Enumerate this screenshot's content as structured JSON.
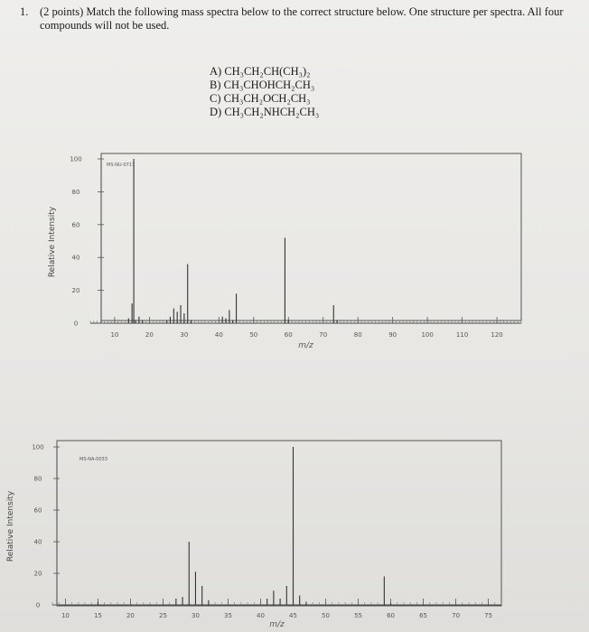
{
  "question": {
    "number": "1.",
    "text": "(2 points) Match the following mass spectra below to the correct structure below. One structure per spectra. All four compounds will not be used."
  },
  "choices": [
    "A) CH₃CH₂CH(CH₃)₂",
    "B) CH₃CHOHCH₂CH₃",
    "C) CH₃CH₂OCH₂CH₃",
    "D) CH₃CH₂NHCH₂CH₃"
  ],
  "chart_data": [
    {
      "type": "bar",
      "title": "",
      "stamp": "MS-NU-0717",
      "xlabel": "m/z",
      "ylabel": "Relative Intensity",
      "xlim": [
        3,
        127
      ],
      "ylim": [
        0,
        100
      ],
      "xticks": [
        10,
        20,
        30,
        40,
        50,
        60,
        70,
        80,
        90,
        100,
        110,
        120
      ],
      "xtick_labels": [
        "10",
        "20",
        "30",
        "40",
        "50",
        "60",
        "70",
        "80",
        "90",
        "100",
        "110",
        "120"
      ],
      "yticks": [
        0,
        20,
        40,
        60,
        80,
        100
      ],
      "ytick_labels": [
        "0",
        "20",
        "40",
        "60",
        "80",
        "100"
      ],
      "grid": false,
      "peaks": [
        {
          "mz": 14,
          "intensity": 3
        },
        {
          "mz": 15,
          "intensity": 12
        },
        {
          "mz": 16,
          "intensity": 2
        },
        {
          "mz": 17,
          "intensity": 4
        },
        {
          "mz": 18,
          "intensity": 2
        },
        {
          "mz": 25,
          "intensity": 2
        },
        {
          "mz": 26,
          "intensity": 4
        },
        {
          "mz": 27,
          "intensity": 9
        },
        {
          "mz": 28,
          "intensity": 7
        },
        {
          "mz": 29,
          "intensity": 11
        },
        {
          "mz": 30,
          "intensity": 6
        },
        {
          "mz": 31,
          "intensity": 36
        },
        {
          "mz": 32,
          "intensity": 2
        },
        {
          "mz": 41,
          "intensity": 4
        },
        {
          "mz": 42,
          "intensity": 3
        },
        {
          "mz": 43,
          "intensity": 8
        },
        {
          "mz": 44,
          "intensity": 2
        },
        {
          "mz": 45,
          "intensity": 18
        },
        {
          "mz": 59,
          "intensity": 52
        },
        {
          "mz": 60,
          "intensity": 2
        },
        {
          "mz": 73,
          "intensity": 11
        },
        {
          "mz": 74,
          "intensity": 2
        }
      ],
      "tall_peak": {
        "mz": 15.5,
        "intensity": 100
      }
    },
    {
      "type": "bar",
      "title": "",
      "stamp": "MS-NA-0033",
      "xlabel": "m/z",
      "ylabel": "Relative Intensity",
      "xlim": [
        8,
        77
      ],
      "ylim": [
        0,
        100
      ],
      "xticks": [
        10,
        15,
        20,
        25,
        30,
        35,
        40,
        45,
        50,
        55,
        60,
        65,
        70,
        75
      ],
      "xtick_labels": [
        "10",
        "15",
        "20",
        "25",
        "30",
        "35",
        "40",
        "45",
        "50",
        "55",
        "60",
        "65",
        "70",
        "75"
      ],
      "yticks": [
        0,
        20,
        40,
        60,
        80,
        100
      ],
      "ytick_labels": [
        "0",
        "20",
        "40",
        "60",
        "80",
        "100"
      ],
      "grid": false,
      "peaks": [
        {
          "mz": 15,
          "intensity": 2
        },
        {
          "mz": 27,
          "intensity": 4
        },
        {
          "mz": 28,
          "intensity": 5
        },
        {
          "mz": 29,
          "intensity": 40
        },
        {
          "mz": 30,
          "intensity": 21
        },
        {
          "mz": 31,
          "intensity": 12
        },
        {
          "mz": 32,
          "intensity": 3
        },
        {
          "mz": 41,
          "intensity": 4
        },
        {
          "mz": 42,
          "intensity": 9
        },
        {
          "mz": 43,
          "intensity": 4
        },
        {
          "mz": 44,
          "intensity": 12
        },
        {
          "mz": 45,
          "intensity": 100
        },
        {
          "mz": 46,
          "intensity": 6
        },
        {
          "mz": 47,
          "intensity": 2
        },
        {
          "mz": 59,
          "intensity": 18
        },
        {
          "mz": 60,
          "intensity": 1
        }
      ]
    }
  ]
}
